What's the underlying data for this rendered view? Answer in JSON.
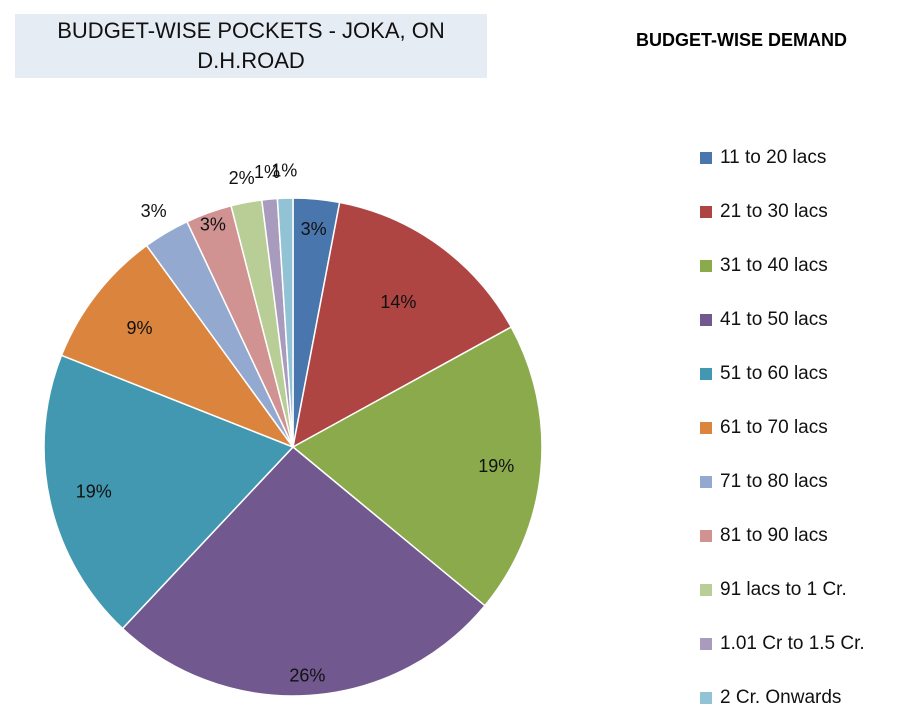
{
  "chart_data": {
    "type": "pie",
    "title": "BUDGET-WISE POCKETS - JOKA, ON D.H.ROAD",
    "legend_title": "BUDGET-WISE DEMAND",
    "legend_position": "right",
    "categories": [
      "11 to 20 lacs",
      "21 to 30 lacs",
      "31 to 40 lacs",
      "41 to 50 lacs",
      "51 to 60 lacs",
      "61 to 70 lacs",
      "71 to 80 lacs",
      "81 to 90 lacs",
      "91 lacs to 1 Cr.",
      "1.01 Cr to 1.5 Cr.",
      "2 Cr. Onwards"
    ],
    "values": [
      3,
      14,
      19,
      26,
      19,
      9,
      3,
      3,
      2,
      1,
      1
    ],
    "labels": [
      "3%",
      "14%",
      "19%",
      "26%",
      "19%",
      "9%",
      "3%",
      "3%",
      "2%",
      "1%",
      "1%"
    ],
    "colors": [
      "#4a76ae",
      "#ae4543",
      "#8aaa4b",
      "#71588f",
      "#4298b0",
      "#db843d",
      "#93a9d0",
      "#d09392",
      "#b9cd96",
      "#a99bbd",
      "#92c3d4"
    ]
  }
}
